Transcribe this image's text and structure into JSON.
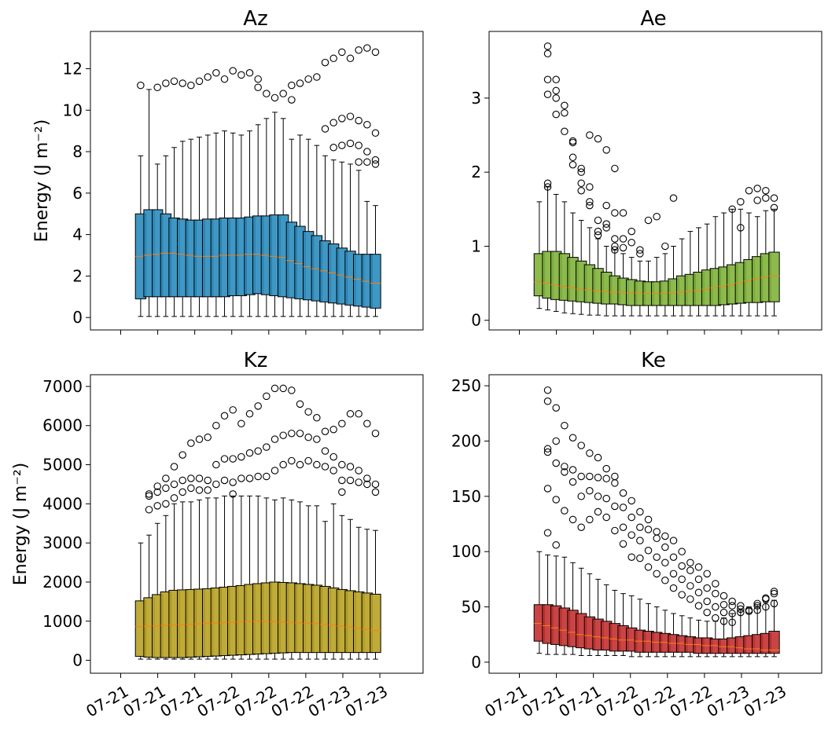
{
  "figure": {
    "ylabel_top": "Energy  (J m⁻²)",
    "ylabel_bottom": "Energy  (J m⁻²)",
    "xtick_labels": [
      "07-21",
      "07-21",
      "07-21",
      "07-22",
      "07-22",
      "07-22",
      "07-23",
      "07-23"
    ]
  },
  "chart_data": [
    {
      "type": "box",
      "title": "Az",
      "color": "#2b8cbe",
      "ylim": [
        -0.6,
        13.8
      ],
      "yticks": [
        0,
        2,
        4,
        6,
        8,
        10,
        12
      ],
      "n_boxes": 29,
      "q1": [
        0.9,
        1.0,
        1.0,
        1.0,
        1.0,
        1.0,
        1.0,
        1.0,
        1.0,
        1.0,
        1.0,
        1.05,
        1.05,
        1.1,
        1.15,
        1.1,
        1.05,
        1.0,
        0.95,
        0.9,
        0.85,
        0.8,
        0.75,
        0.7,
        0.65,
        0.6,
        0.55,
        0.5,
        0.45
      ],
      "median": [
        2.95,
        3.0,
        3.05,
        3.1,
        3.1,
        3.05,
        3.0,
        2.95,
        2.95,
        2.95,
        3.0,
        3.0,
        3.0,
        3.05,
        3.05,
        3.0,
        2.95,
        2.9,
        2.75,
        2.6,
        2.45,
        2.35,
        2.25,
        2.15,
        2.05,
        1.95,
        1.85,
        1.75,
        1.65
      ],
      "q3": [
        5.0,
        5.2,
        5.2,
        5.0,
        4.8,
        4.75,
        4.7,
        4.7,
        4.75,
        4.75,
        4.8,
        4.8,
        4.8,
        4.85,
        4.9,
        4.9,
        4.95,
        4.95,
        4.6,
        4.4,
        4.15,
        3.95,
        3.7,
        3.55,
        3.35,
        3.2,
        3.05,
        3.05,
        3.05
      ],
      "whislo": [
        0.05,
        0.05,
        0.05,
        0.05,
        0.05,
        0.05,
        0.05,
        0.05,
        0.05,
        0.05,
        0.05,
        0.05,
        0.05,
        0.05,
        0.05,
        0.05,
        0.05,
        0.05,
        0.05,
        0.05,
        0.05,
        0.05,
        0.05,
        0.05,
        0.05,
        0.05,
        0.05,
        0.05,
        0.05
      ],
      "whishi": [
        7.8,
        11.0,
        7.4,
        7.8,
        8.2,
        8.5,
        8.6,
        8.7,
        8.8,
        8.9,
        9.0,
        8.9,
        8.8,
        9.0,
        9.3,
        9.6,
        9.9,
        9.6,
        8.6,
        8.8,
        8.6,
        8.3,
        7.8,
        7.6,
        7.5,
        7.4,
        7.1,
        5.6,
        5.4
      ],
      "fliers": [
        [
          11.2
        ],
        [],
        [
          11.1
        ],
        [
          11.3
        ],
        [
          11.4
        ],
        [
          11.3
        ],
        [
          11.2
        ],
        [
          11.4
        ],
        [
          11.6
        ],
        [
          11.8
        ],
        [
          11.5
        ],
        [
          11.9
        ],
        [
          11.7
        ],
        [
          11.8
        ],
        [
          11.5,
          11.1
        ],
        [
          10.8
        ],
        [
          10.6
        ],
        [
          10.8
        ],
        [
          11.2,
          10.5
        ],
        [
          11.3
        ],
        [
          11.5
        ],
        [
          11.6
        ],
        [
          12.3,
          9.1
        ],
        [
          12.5,
          9.4,
          8.2
        ],
        [
          12.8,
          9.6,
          8.3
        ],
        [
          12.5,
          9.7,
          8.4
        ],
        [
          12.9,
          9.5,
          8.3,
          7.5
        ],
        [
          13.0,
          9.3,
          8.0,
          7.5
        ],
        [
          12.8,
          8.9,
          7.6,
          7.4
        ]
      ]
    },
    {
      "type": "box",
      "title": "Ae",
      "color": "#7fb33b",
      "ylim": [
        -0.13,
        3.9
      ],
      "yticks": [
        0,
        1,
        2,
        3
      ],
      "n_boxes": 29,
      "q1": [
        0.33,
        0.3,
        0.28,
        0.27,
        0.26,
        0.25,
        0.24,
        0.23,
        0.22,
        0.22,
        0.21,
        0.2,
        0.2,
        0.2,
        0.2,
        0.2,
        0.2,
        0.2,
        0.2,
        0.2,
        0.2,
        0.2,
        0.21,
        0.22,
        0.23,
        0.24,
        0.24,
        0.25,
        0.25
      ],
      "median": [
        0.52,
        0.5,
        0.48,
        0.46,
        0.44,
        0.42,
        0.41,
        0.4,
        0.39,
        0.38,
        0.38,
        0.37,
        0.37,
        0.36,
        0.36,
        0.36,
        0.37,
        0.38,
        0.39,
        0.4,
        0.42,
        0.44,
        0.46,
        0.48,
        0.5,
        0.53,
        0.56,
        0.58,
        0.6
      ],
      "q3": [
        0.9,
        0.93,
        0.93,
        0.9,
        0.85,
        0.8,
        0.75,
        0.7,
        0.65,
        0.6,
        0.57,
        0.55,
        0.53,
        0.52,
        0.52,
        0.53,
        0.56,
        0.6,
        0.62,
        0.65,
        0.68,
        0.7,
        0.72,
        0.75,
        0.78,
        0.82,
        0.86,
        0.9,
        0.92
      ],
      "whislo": [
        0.16,
        0.14,
        0.12,
        0.1,
        0.09,
        0.08,
        0.07,
        0.07,
        0.06,
        0.06,
        0.06,
        0.06,
        0.06,
        0.06,
        0.06,
        0.06,
        0.06,
        0.06,
        0.06,
        0.06,
        0.06,
        0.06,
        0.06,
        0.06,
        0.06,
        0.06,
        0.06,
        0.06,
        0.06
      ],
      "whishi": [
        1.6,
        1.8,
        1.7,
        1.6,
        1.45,
        1.35,
        1.25,
        1.1,
        1.0,
        0.95,
        0.9,
        0.85,
        0.8,
        0.8,
        0.85,
        0.9,
        1.0,
        1.1,
        1.2,
        1.25,
        1.3,
        1.4,
        1.45,
        1.5,
        1.5,
        1.45,
        1.4,
        1.48,
        1.5
      ],
      "fliers": [
        [],
        [
          3.7,
          3.6,
          3.25,
          3.05,
          1.85,
          1.8
        ],
        [
          3.25,
          3.1,
          3.0,
          2.78
        ],
        [
          2.9,
          2.8,
          2.55
        ],
        [
          2.42,
          2.4,
          2.2,
          2.1
        ],
        [
          2.05,
          2.0,
          1.85,
          1.75
        ],
        [
          2.5,
          1.8,
          1.6,
          1.55
        ],
        [
          2.45,
          1.35,
          1.2,
          1.15
        ],
        [
          2.3,
          1.55,
          1.3,
          1.25
        ],
        [
          2.05,
          1.45,
          1.1,
          1.0,
          0.95
        ],
        [
          1.45,
          1.1,
          0.98
        ],
        [
          1.2,
          1.05
        ],
        [
          0.95,
          0.9
        ],
        [
          1.35
        ],
        [
          1.4
        ],
        [
          1.0
        ],
        [
          1.65
        ],
        [],
        [],
        [],
        [],
        [],
        [],
        [
          1.5
        ],
        [
          1.6,
          1.25
        ],
        [
          1.75
        ],
        [
          1.78,
          1.62
        ],
        [
          1.75,
          1.65
        ],
        [
          1.65,
          1.52
        ]
      ]
    },
    {
      "type": "box",
      "title": "Kz",
      "color": "#b8a225",
      "ylim": [
        -330,
        7300
      ],
      "yticks": [
        0,
        1000,
        2000,
        3000,
        4000,
        5000,
        6000,
        7000
      ],
      "n_boxes": 29,
      "q1": [
        100,
        80,
        70,
        70,
        70,
        70,
        80,
        90,
        100,
        110,
        120,
        130,
        140,
        150,
        160,
        170,
        180,
        190,
        200,
        200,
        200,
        200,
        200,
        200,
        200,
        200,
        200,
        200,
        200
      ],
      "median": [
        860,
        870,
        880,
        890,
        900,
        910,
        920,
        930,
        940,
        950,
        960,
        970,
        980,
        990,
        1000,
        1000,
        990,
        980,
        970,
        960,
        950,
        940,
        920,
        900,
        880,
        850,
        820,
        790,
        760
      ],
      "q3": [
        1520,
        1600,
        1680,
        1750,
        1790,
        1800,
        1810,
        1820,
        1830,
        1850,
        1870,
        1890,
        1910,
        1940,
        1960,
        1980,
        2000,
        1990,
        1980,
        1960,
        1940,
        1920,
        1890,
        1850,
        1810,
        1780,
        1750,
        1720,
        1690
      ],
      "whislo": [
        30,
        30,
        30,
        30,
        30,
        30,
        30,
        30,
        30,
        30,
        30,
        30,
        30,
        30,
        30,
        30,
        30,
        30,
        30,
        30,
        30,
        30,
        30,
        30,
        30,
        30,
        30,
        30,
        30
      ],
      "whishi": [
        3000,
        3200,
        3500,
        3700,
        4000,
        4050,
        4050,
        4100,
        4150,
        4150,
        4200,
        4200,
        4200,
        4200,
        4200,
        4150,
        4100,
        4150,
        4100,
        4050,
        3950,
        3950,
        3550,
        4000,
        3700,
        3600,
        3400,
        3350,
        3320
      ],
      "fliers": [
        [],
        [
          4250,
          4200,
          3850
        ],
        [
          4450,
          4300,
          3950
        ],
        [
          4650,
          4400,
          4000
        ],
        [
          4950,
          4500,
          4150
        ],
        [
          5250,
          4600,
          4300
        ],
        [
          5550,
          4650,
          4400
        ],
        [
          5650,
          4650,
          4350
        ],
        [
          5700,
          4600,
          4350
        ],
        [
          6000,
          5000,
          4500
        ],
        [
          6250,
          5150,
          4600
        ],
        [
          6400,
          5150,
          4550,
          4250
        ],
        [
          6050,
          5200,
          4650
        ],
        [
          6300,
          5300,
          4650
        ],
        [
          6500,
          5350,
          4700
        ],
        [
          6750,
          5450,
          4700
        ],
        [
          6950,
          5650,
          4850
        ],
        [
          6950,
          5750,
          5000
        ],
        [
          6900,
          5800,
          5100
        ],
        [
          6550,
          5800,
          5000
        ],
        [
          6350,
          5700,
          5100
        ],
        [
          6200,
          5650,
          5000
        ],
        [
          5850,
          5350,
          4950
        ],
        [
          5900,
          5200,
          4850
        ],
        [
          6050,
          5000,
          4600,
          4300
        ],
        [
          6300,
          4950,
          4600
        ],
        [
          6300,
          4850,
          4550
        ],
        [
          6050,
          4650,
          4500
        ],
        [
          5800,
          4500,
          4300
        ]
      ]
    },
    {
      "type": "box",
      "title": "Ke",
      "color": "#c33131",
      "ylim": [
        -10,
        260
      ],
      "yticks": [
        0,
        50,
        100,
        150,
        200,
        250
      ],
      "n_boxes": 29,
      "q1": [
        19,
        17,
        16,
        15,
        14,
        13,
        12,
        11,
        11,
        10,
        10,
        10,
        9,
        9,
        9,
        9,
        9,
        9,
        9,
        8,
        8,
        8,
        8,
        8,
        8,
        8,
        8,
        8,
        8
      ],
      "median": [
        35,
        33,
        31,
        29,
        27,
        25,
        24,
        23,
        22,
        21,
        20,
        20,
        19,
        19,
        18,
        18,
        17,
        17,
        16,
        16,
        15,
        15,
        14,
        14,
        13,
        12,
        12,
        11,
        11
      ],
      "q3": [
        52,
        52,
        51,
        49,
        47,
        44,
        41,
        39,
        37,
        35,
        33,
        31,
        29,
        28,
        27,
        26,
        25,
        24,
        23,
        22,
        22,
        21,
        21,
        22,
        23,
        24,
        25,
        26,
        28
      ],
      "whislo": [
        8,
        7,
        7,
        7,
        7,
        6,
        6,
        6,
        6,
        6,
        6,
        5,
        5,
        5,
        5,
        5,
        5,
        5,
        5,
        5,
        5,
        5,
        5,
        5,
        5,
        5,
        5,
        5,
        5
      ],
      "whishi": [
        100,
        97,
        96,
        95,
        90,
        85,
        80,
        75,
        70,
        65,
        62,
        60,
        57,
        53,
        50,
        47,
        44,
        42,
        40,
        38,
        37,
        37,
        40,
        44,
        47,
        50,
        52,
        54,
        56
      ],
      "fliers": [
        [],
        [
          246,
          236,
          193,
          190,
          157,
          117
        ],
        [
          230,
          200,
          180,
          147,
          106
        ],
        [
          214,
          177,
          172,
          137
        ],
        [
          203,
          174,
          163,
          129
        ],
        [
          196,
          168,
          150,
          122
        ],
        [
          189,
          168,
          155,
          129
        ],
        [
          185,
          167,
          150,
          136
        ],
        [
          175,
          166,
          148,
          131
        ],
        [
          168,
          162,
          141,
          119
        ],
        [
          153,
          140,
          122,
          107
        ],
        [
          146,
          131,
          115,
          95
        ],
        [
          136,
          122,
          110,
          94
        ],
        [
          129,
          120,
          101,
          86
        ],
        [
          118,
          112,
          95,
          80
        ],
        [
          114,
          104,
          90,
          74
        ],
        [
          110,
          95,
          80,
          67
        ],
        [
          100,
          87,
          75,
          61
        ],
        [
          90,
          83,
          69,
          57
        ],
        [
          86,
          75,
          63,
          51
        ],
        [
          80,
          67,
          55,
          45
        ],
        [
          71,
          62,
          50,
          40
        ],
        [
          60,
          52,
          45,
          37
        ],
        [
          55,
          51,
          44,
          36
        ],
        [
          51,
          48,
          45
        ],
        [
          47,
          46
        ],
        [
          53,
          51,
          47
        ],
        [
          58,
          57,
          50
        ],
        [
          64,
          62,
          53
        ]
      ]
    }
  ]
}
